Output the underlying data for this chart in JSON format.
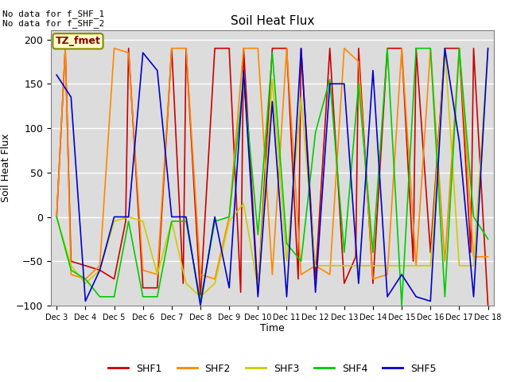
{
  "title": "Soil Heat Flux",
  "ylabel": "Soil Heat Flux",
  "xlabel": "Time",
  "ylim": [
    -100,
    210
  ],
  "background_color": "#dcdcdc",
  "annotation_text": "No data for f_SHF_1\nNo data for f_SHF_2",
  "legend_box_text": "TZ_fmet",
  "legend_box_color": "#ffffcc",
  "legend_box_edge_color": "#888800",
  "legend_box_text_color": "#880000",
  "colors": {
    "SHF1": "#cc0000",
    "SHF2": "#ff8800",
    "SHF3": "#cccc00",
    "SHF4": "#00cc00",
    "SHF5": "#0000cc"
  },
  "x_labels": [
    "Dec 3",
    "Dec 4",
    "Dec 5",
    "Dec 6",
    "Dec 7",
    "Dec 8",
    "Dec 9",
    "Dec 10",
    "Dec 11",
    "Dec 12",
    "Dec 13",
    "Dec 14",
    "Dec 15",
    "Dec 16",
    "Dec 17",
    "Dec 18"
  ],
  "x_ticks": [
    0,
    1,
    2,
    3,
    4,
    5,
    6,
    7,
    8,
    9,
    10,
    11,
    12,
    13,
    14,
    15
  ],
  "shf1_x": [
    0,
    0.3,
    0.5,
    1.0,
    1.5,
    2.0,
    2.4,
    2.5,
    3.0,
    3.5,
    4.0,
    4.4,
    4.5,
    5.0,
    5.5,
    6.0,
    6.4,
    6.5,
    7.0,
    7.5,
    8.0,
    8.4,
    8.5,
    9.0,
    9.5,
    10.0,
    10.4,
    10.5,
    11.0,
    11.5,
    12.0,
    12.4,
    12.5,
    13.0,
    13.5,
    14.0,
    14.4,
    14.5,
    15.0
  ],
  "shf1_y": [
    0,
    190,
    -50,
    -55,
    -60,
    -70,
    -5,
    190,
    -80,
    -80,
    190,
    -75,
    190,
    -90,
    190,
    190,
    -85,
    190,
    -85,
    190,
    190,
    -70,
    190,
    -70,
    190,
    -75,
    -45,
    190,
    -75,
    190,
    190,
    -50,
    190,
    -40,
    190,
    190,
    -40,
    190,
    -100
  ],
  "shf2_x": [
    0,
    0.3,
    0.5,
    1.0,
    1.5,
    2.0,
    2.5,
    3.0,
    3.5,
    4.0,
    4.5,
    5.0,
    5.5,
    6.0,
    6.5,
    7.0,
    7.5,
    8.0,
    8.5,
    9.0,
    9.5,
    10.0,
    10.5,
    11.0,
    11.5,
    12.0,
    12.5,
    13.0,
    13.5,
    14.0,
    14.5,
    15.0
  ],
  "shf2_y": [
    0,
    190,
    -65,
    -70,
    -55,
    190,
    185,
    -60,
    -65,
    190,
    190,
    -65,
    -70,
    0,
    190,
    190,
    -65,
    190,
    -65,
    -55,
    -65,
    190,
    175,
    -70,
    -65,
    190,
    -55,
    190,
    -50,
    190,
    -45,
    -45
  ],
  "shf3_x": [
    0,
    0.5,
    1.0,
    1.5,
    2.0,
    2.5,
    3.0,
    3.5,
    4.0,
    4.5,
    5.0,
    5.5,
    6.0,
    6.5,
    7.0,
    7.5,
    8.0,
    8.5,
    9.0,
    9.5,
    10.0,
    10.5,
    11.0,
    11.5,
    12.0,
    12.5,
    13.0,
    13.5,
    14.0,
    14.5,
    15.0
  ],
  "shf3_y": [
    0,
    -55,
    -75,
    -60,
    -5,
    0,
    -5,
    -65,
    -5,
    -75,
    -90,
    -75,
    -5,
    15,
    -80,
    155,
    -50,
    135,
    -55,
    -55,
    -55,
    -55,
    -55,
    -55,
    -55,
    -55,
    -55,
    190,
    -55,
    -55,
    190
  ],
  "shf4_x": [
    0,
    0.5,
    1.0,
    1.5,
    2.0,
    2.5,
    3.0,
    3.5,
    4.0,
    4.5,
    5.0,
    5.5,
    6.0,
    6.5,
    7.0,
    7.5,
    8.0,
    8.5,
    9.0,
    9.5,
    10.0,
    10.5,
    11.0,
    11.5,
    12.0,
    12.5,
    13.0,
    13.5,
    14.0,
    14.5,
    15.0
  ],
  "shf4_y": [
    0,
    -60,
    -70,
    -90,
    -90,
    -5,
    -90,
    -90,
    -5,
    -5,
    -95,
    -5,
    0,
    155,
    -20,
    185,
    -30,
    -50,
    95,
    155,
    -40,
    150,
    -40,
    190,
    -100,
    190,
    190,
    -90,
    190,
    0,
    -25
  ],
  "shf5_x": [
    0,
    0.5,
    1.0,
    1.5,
    2.0,
    2.5,
    3.0,
    3.5,
    4.0,
    4.5,
    5.0,
    5.5,
    6.0,
    6.5,
    7.0,
    7.5,
    8.0,
    8.5,
    9.0,
    9.5,
    10.0,
    10.5,
    11.0,
    11.5,
    12.0,
    12.5,
    13.0,
    13.5,
    14.0,
    14.5,
    15.0
  ],
  "shf5_y": [
    160,
    135,
    -95,
    -60,
    0,
    0,
    185,
    165,
    0,
    0,
    -100,
    0,
    -80,
    165,
    -90,
    130,
    -90,
    190,
    -85,
    150,
    150,
    -75,
    165,
    -90,
    -65,
    -90,
    -95,
    190,
    85,
    -90,
    190
  ]
}
